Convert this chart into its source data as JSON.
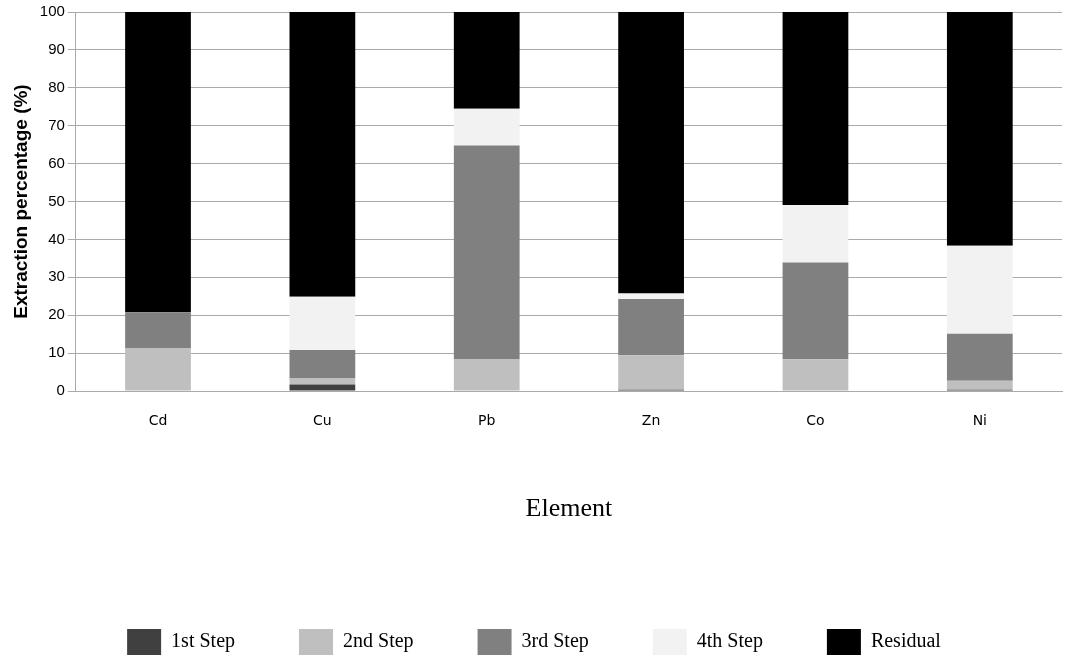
{
  "chart_data": {
    "type": "bar",
    "stacked": true,
    "xlabel": "Element",
    "ylabel": "Extraction percentage (%)",
    "categories": [
      "Cd",
      "Cu",
      "Pb",
      "Zn",
      "Co",
      "Ni"
    ],
    "series": [
      {
        "name": "1st Step",
        "color": "#404040",
        "values": [
          0,
          1.7,
          0,
          0.3,
          0,
          0.3
        ]
      },
      {
        "name": "2nd Step",
        "color": "#bfbfbf",
        "values": [
          11.2,
          1.6,
          8.3,
          9.1,
          8.4,
          2.4
        ]
      },
      {
        "name": "3rd Step",
        "color": "#808080",
        "values": [
          9.6,
          7.5,
          56.5,
          14.9,
          25.5,
          12.4
        ]
      },
      {
        "name": "4th Step",
        "color": "#f2f2f2",
        "values": [
          null,
          14.1,
          9.7,
          1.4,
          15.2,
          23.2
        ]
      },
      {
        "name": "Residual",
        "color": "#000000",
        "values": [
          79.2,
          75.1,
          25.5,
          74.3,
          50.9,
          61.7
        ]
      }
    ],
    "ylim": [
      0,
      100
    ],
    "yticks": [
      0,
      10,
      20,
      30,
      40,
      50,
      60,
      70,
      80,
      90,
      100
    ],
    "grid": "y",
    "legend": "bottom"
  }
}
